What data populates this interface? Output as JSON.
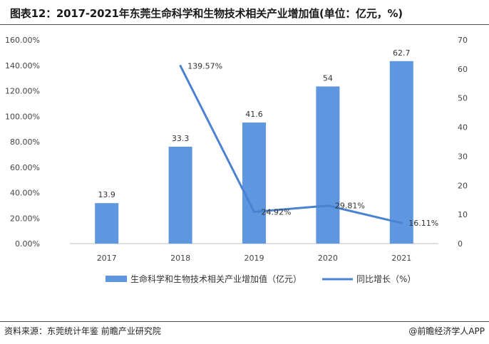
{
  "header": {
    "title": "图表12：2017-2021年东莞生命科学和生物技术相关产业增加值(单位：亿元，%)"
  },
  "footer": {
    "source": "资料来源：东莞统计年鉴 前瞻产业研究院",
    "brand": "@前瞻经济学人APP"
  },
  "colors": {
    "bar": "#5f96e0",
    "line": "#4a82cf",
    "axis": "#bfbfbf"
  },
  "chart_data": {
    "type": "bar",
    "categories": [
      "2017",
      "2018",
      "2019",
      "2020",
      "2021"
    ],
    "series": [
      {
        "name": "生命科学和生物技术相关产业增加值（亿元）",
        "type": "bar",
        "axis": "right",
        "values": [
          13.9,
          33.3,
          41.6,
          54,
          62.7
        ],
        "labels": [
          "13.9",
          "33.3",
          "41.6",
          "54",
          "62.7"
        ]
      },
      {
        "name": "同比增长（%）",
        "type": "line",
        "axis": "left",
        "values": [
          null,
          139.57,
          24.92,
          29.81,
          16.11
        ],
        "labels": [
          "",
          "139.57%",
          "24.92%",
          "29.81%",
          "16.11%"
        ]
      }
    ],
    "y_left": {
      "lim": [
        0,
        160
      ],
      "ticks": [
        "0.00%",
        "20.00%",
        "40.00%",
        "60.00%",
        "80.00%",
        "100.00%",
        "120.00%",
        "140.00%",
        "160.00%"
      ]
    },
    "y_right": {
      "lim": [
        0,
        70
      ],
      "ticks": [
        "0",
        "10",
        "20",
        "30",
        "40",
        "50",
        "60",
        "70"
      ]
    },
    "legend": "bottom",
    "grid": false
  }
}
